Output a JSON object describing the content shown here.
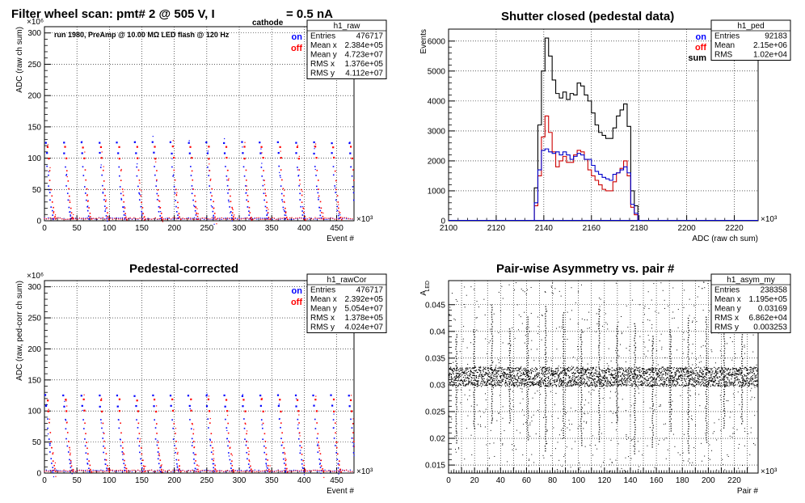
{
  "chart_data": [
    {
      "id": "raw",
      "type": "scatter",
      "title": "Filter wheel scan: pmt#   2 @   505 V, I",
      "title_sub": "cathode",
      "title_tail": "= 0.5 nA",
      "annotation": "run 1980, PreAmp @ 10.00 MΩ LED flash @  120 Hz",
      "xlabel": "Event #",
      "ylabel": "ADC (raw ch sum)",
      "x_multiplier": "×10³",
      "y_multiplier": "×10⁶",
      "xlim": [
        0,
        476.717
      ],
      "ylim": [
        0,
        310
      ],
      "xticks": [
        0,
        50,
        100,
        150,
        200,
        250,
        300,
        350,
        400,
        450
      ],
      "yticks": [
        0,
        50,
        100,
        150,
        200,
        250,
        300
      ],
      "grid": true,
      "legend": [
        "on",
        "off"
      ],
      "stats": {
        "name": "h1_raw",
        "rows": [
          [
            "Entries",
            "476717"
          ],
          [
            "Mean x",
            "2.384e+05"
          ],
          [
            "Mean y",
            "4.723e+07"
          ],
          [
            "RMS x",
            "1.376e+05"
          ],
          [
            "RMS y",
            "4.112e+07"
          ]
        ]
      },
      "series": [
        {
          "name": "on",
          "color": "#0000ff",
          "levels": [
            125,
            108,
            86,
            72,
            55,
            44,
            33,
            22,
            15,
            8,
            3
          ]
        },
        {
          "name": "off",
          "color": "#ff0000",
          "levels": [
            118,
            100,
            80,
            64,
            50,
            40,
            30,
            20,
            12,
            6,
            2
          ]
        }
      ],
      "cycle_period": 27.5
    },
    {
      "id": "ped",
      "type": "histogram",
      "title": "Shutter closed (pedestal data)",
      "xlabel": "ADC (raw ch sum)",
      "ylabel": "Events",
      "x_multiplier": "×10³",
      "xlim": [
        2100,
        2230
      ],
      "ylim": [
        0,
        6400
      ],
      "xticks": [
        2100,
        2120,
        2140,
        2160,
        2180,
        2200,
        2220
      ],
      "yticks": [
        0,
        1000,
        2000,
        3000,
        4000,
        5000,
        6000
      ],
      "grid": true,
      "legend": [
        "on",
        "off",
        "sum"
      ],
      "stats": {
        "name": "h1_ped",
        "rows": [
          [
            "Entries",
            "92183"
          ],
          [
            "Mean",
            "2.15e+06"
          ],
          [
            "RMS",
            "1.02e+04"
          ]
        ]
      },
      "bin_start": 2136,
      "bin_width": 1.5,
      "series": [
        {
          "name": "sum",
          "color": "#000000",
          "values": [
            1100,
            3200,
            5000,
            6100,
            5500,
            4700,
            4250,
            4100,
            4300,
            4050,
            4250,
            4200,
            4600,
            4500,
            4200,
            4000,
            3600,
            3200,
            2950,
            2850,
            2750,
            2750,
            3100,
            3500,
            3700,
            3900,
            3150,
            1000,
            500,
            0
          ]
        },
        {
          "name": "off",
          "color": "#cc0000",
          "values": [
            500,
            1500,
            2800,
            3500,
            2950,
            2300,
            1800,
            2000,
            2150,
            1950,
            1950,
            2200,
            2350,
            2300,
            2050,
            1700,
            1500,
            1350,
            1200,
            1050,
            1000,
            1000,
            1300,
            1600,
            1750,
            2000,
            1500,
            450,
            200,
            0
          ]
        },
        {
          "name": "on",
          "color": "#0000cc",
          "values": [
            600,
            1700,
            2350,
            2400,
            2300,
            2250,
            2300,
            2200,
            2300,
            2200,
            2050,
            2150,
            2250,
            2200,
            2050,
            2050,
            1850,
            1650,
            1550,
            1450,
            1400,
            1350,
            1550,
            1600,
            1700,
            1800,
            1600,
            550,
            250,
            0
          ]
        }
      ]
    },
    {
      "id": "cor",
      "type": "scatter",
      "title": "Pedestal-corrected",
      "xlabel": "Event #",
      "ylabel": "ADC (raw, ped-corr ch sum)",
      "x_multiplier": "×10³",
      "y_multiplier": "×10⁶",
      "xlim": [
        0,
        476.717
      ],
      "ylim": [
        0,
        310
      ],
      "xticks": [
        0,
        50,
        100,
        150,
        200,
        250,
        300,
        350,
        400,
        450
      ],
      "yticks": [
        0,
        50,
        100,
        150,
        200,
        250,
        300
      ],
      "grid": true,
      "legend": [
        "on",
        "off"
      ],
      "stats": {
        "name": "h1_rawCor",
        "rows": [
          [
            "Entries",
            "476717"
          ],
          [
            "Mean x",
            "2.392e+05"
          ],
          [
            "Mean y",
            "5.054e+07"
          ],
          [
            "RMS x",
            "1.378e+05"
          ],
          [
            "RMS y",
            "4.024e+07"
          ]
        ]
      },
      "series": [
        {
          "name": "on",
          "color": "#0000ff",
          "levels": [
            125,
            108,
            86,
            72,
            55,
            44,
            33,
            22,
            15,
            8,
            3
          ]
        },
        {
          "name": "off",
          "color": "#ff0000",
          "levels": [
            118,
            100,
            80,
            64,
            50,
            40,
            30,
            20,
            12,
            6,
            2
          ]
        }
      ],
      "cycle_period": 27.5
    },
    {
      "id": "asym",
      "type": "scatter",
      "title": "Pair-wise Asymmetry vs. pair #",
      "xlabel": "Pair #",
      "ylabel": "A",
      "ylabel_sub": "LED",
      "x_multiplier": "×10³",
      "xlim": [
        0,
        238.358
      ],
      "ylim": [
        0.0135,
        0.0495
      ],
      "xticks": [
        0,
        10,
        20,
        30,
        40,
        50,
        60,
        70,
        80,
        90,
        100,
        110,
        120,
        130,
        140,
        150,
        160,
        170,
        180,
        190,
        200,
        210,
        220,
        230
      ],
      "xtick_labels": [
        "0",
        "",
        "20",
        "",
        "40",
        "",
        "60",
        "",
        "80",
        "",
        "100",
        "",
        "120",
        "",
        "140",
        "",
        "160",
        "",
        "180",
        "",
        "200",
        "",
        "220",
        ""
      ],
      "yticks": [
        0.015,
        0.02,
        0.025,
        0.03,
        0.035,
        0.04,
        0.045
      ],
      "grid": true,
      "stats": {
        "name": "h1_asym_my",
        "rows": [
          [
            "Entries",
            "238358"
          ],
          [
            "Mean x",
            "1.195e+05"
          ],
          [
            "Mean y",
            "0.03169"
          ],
          [
            "RMS x",
            "6.862e+04"
          ],
          [
            "RMS y",
            "0.003253"
          ]
        ]
      },
      "band_center": 0.0315,
      "band_halfwidth": 0.0018,
      "spike_period": 13.75,
      "color": "#000000"
    }
  ],
  "legend_colors": {
    "on": "#0000ff",
    "off": "#ff0000",
    "sum": "#000000"
  }
}
